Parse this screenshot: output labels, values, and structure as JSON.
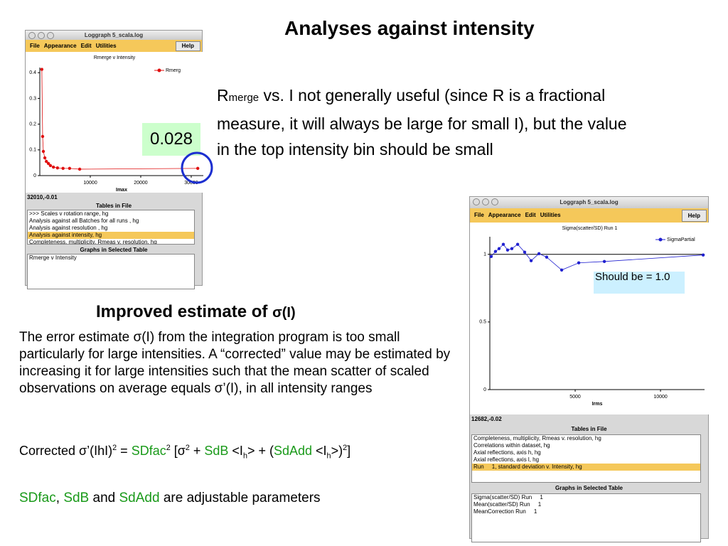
{
  "title": "Analyses against intensity",
  "rmerge_text": [
    "R",
    "merge",
    " vs. I not generally useful (since R is a fractional measure, it will always be large for small I), but the value in the top intensity bin should be small"
  ],
  "callout_value": "0.028",
  "callout_should": "Should be = 1.0",
  "section_title": [
    "Improved estimate of ",
    "σ(I)"
  ],
  "paragraph": "The error estimate σ(I) from the integration program is too small particularly for large intensities. A “corrected” value may be estimated by increasing it for large intensities such that the mean scatter of scaled observations on average equals σ’(I), in all intensity ranges",
  "formula": [
    "Corrected σ’(IhI)",
    "2",
    " = ",
    "SDfac",
    "2",
    " [σ",
    "2",
    " + ",
    "SdB",
    " <I",
    "h",
    "> + (",
    "SdAdd",
    " <I",
    "h",
    ">)",
    "2",
    "]"
  ],
  "footer": [
    "SDfac",
    ", ",
    "SdB",
    " and ",
    "SdAdd",
    " are adjustable parameters"
  ],
  "window1": {
    "title": "Loggraph 5_scala.log",
    "menu": [
      "File",
      "Appearance",
      "Edit",
      "Utilities"
    ],
    "help": "Help",
    "chart": {
      "type": "line",
      "title": "Rmerge v Intensity",
      "legend": "Rmerg",
      "color": "#e01010",
      "x_label": "Imax",
      "x": [
        400,
        560,
        700,
        1000,
        1300,
        1700,
        2100,
        2700,
        3500,
        4600,
        5900,
        7900,
        31300
      ],
      "values": [
        0.413,
        0.152,
        0.094,
        0.069,
        0.055,
        0.047,
        0.039,
        0.033,
        0.03,
        0.028,
        0.028,
        0.025,
        0.028
      ],
      "xlim": [
        0,
        32400
      ],
      "ylim": [
        0,
        0.42
      ],
      "xticks": [
        10000,
        20000,
        30000
      ],
      "yticks": [
        0,
        0.1,
        0.2,
        0.3,
        0.4
      ]
    },
    "coords": "32010,-0.01",
    "tables_label": "Tables in File",
    "tables": [
      ">>> Scales v rotation range, hg",
      "Analysis against all Batches for all runs , hg",
      "Analysis against resolution , hg",
      "Analysis against intensity, hg",
      "Completeness, multiplicity, Rmeas v. resolution, hg"
    ],
    "selected": 3,
    "graphs_label": "Graphs in Selected Table",
    "graphs": [
      "Rmerge v Intensity"
    ]
  },
  "window2": {
    "title": "Loggraph 5_scala.log",
    "menu": [
      "File",
      "Appearance",
      "Edit",
      "Utilities"
    ],
    "help": "Help",
    "chart": {
      "type": "line",
      "title": "Sigma(scatter/SD) Run     1",
      "legend": "SigmaPartial",
      "color": "#2020d0",
      "x_label": "Irms",
      "x": [
        80,
        330,
        540,
        790,
        1040,
        1290,
        1630,
        2040,
        2420,
        2880,
        3330,
        4210,
        5210,
        6710,
        12500
      ],
      "values": [
        0.984,
        1.021,
        1.042,
        1.074,
        1.032,
        1.042,
        1.074,
        1.016,
        0.953,
        1.005,
        0.979,
        0.884,
        0.937,
        0.947,
        0.995
      ],
      "xlim": [
        0,
        12580
      ],
      "ylim": [
        0,
        1.13
      ],
      "xticks": [
        5000,
        10000
      ],
      "yticks": [
        0,
        0.5,
        1
      ],
      "reference_line": 1
    },
    "coords": "12682,-0.02",
    "tables_label": "Tables in File",
    "tables": [
      "Completeness, multiplicity, Rmeas v. resolution, hg",
      "Correlations within dataset, hg",
      "Axial reflections, axis h, hg",
      "Axial reflections, axis l, hg",
      "Run     1, standard deviation v. Intensity, hg"
    ],
    "selected": 4,
    "graphs_label": "Graphs in Selected Table",
    "graphs": [
      "Sigma(scatter/SD) Run     1",
      "Mean(scatter/SD) Run     1",
      "MeanCorrection Run     1"
    ]
  }
}
